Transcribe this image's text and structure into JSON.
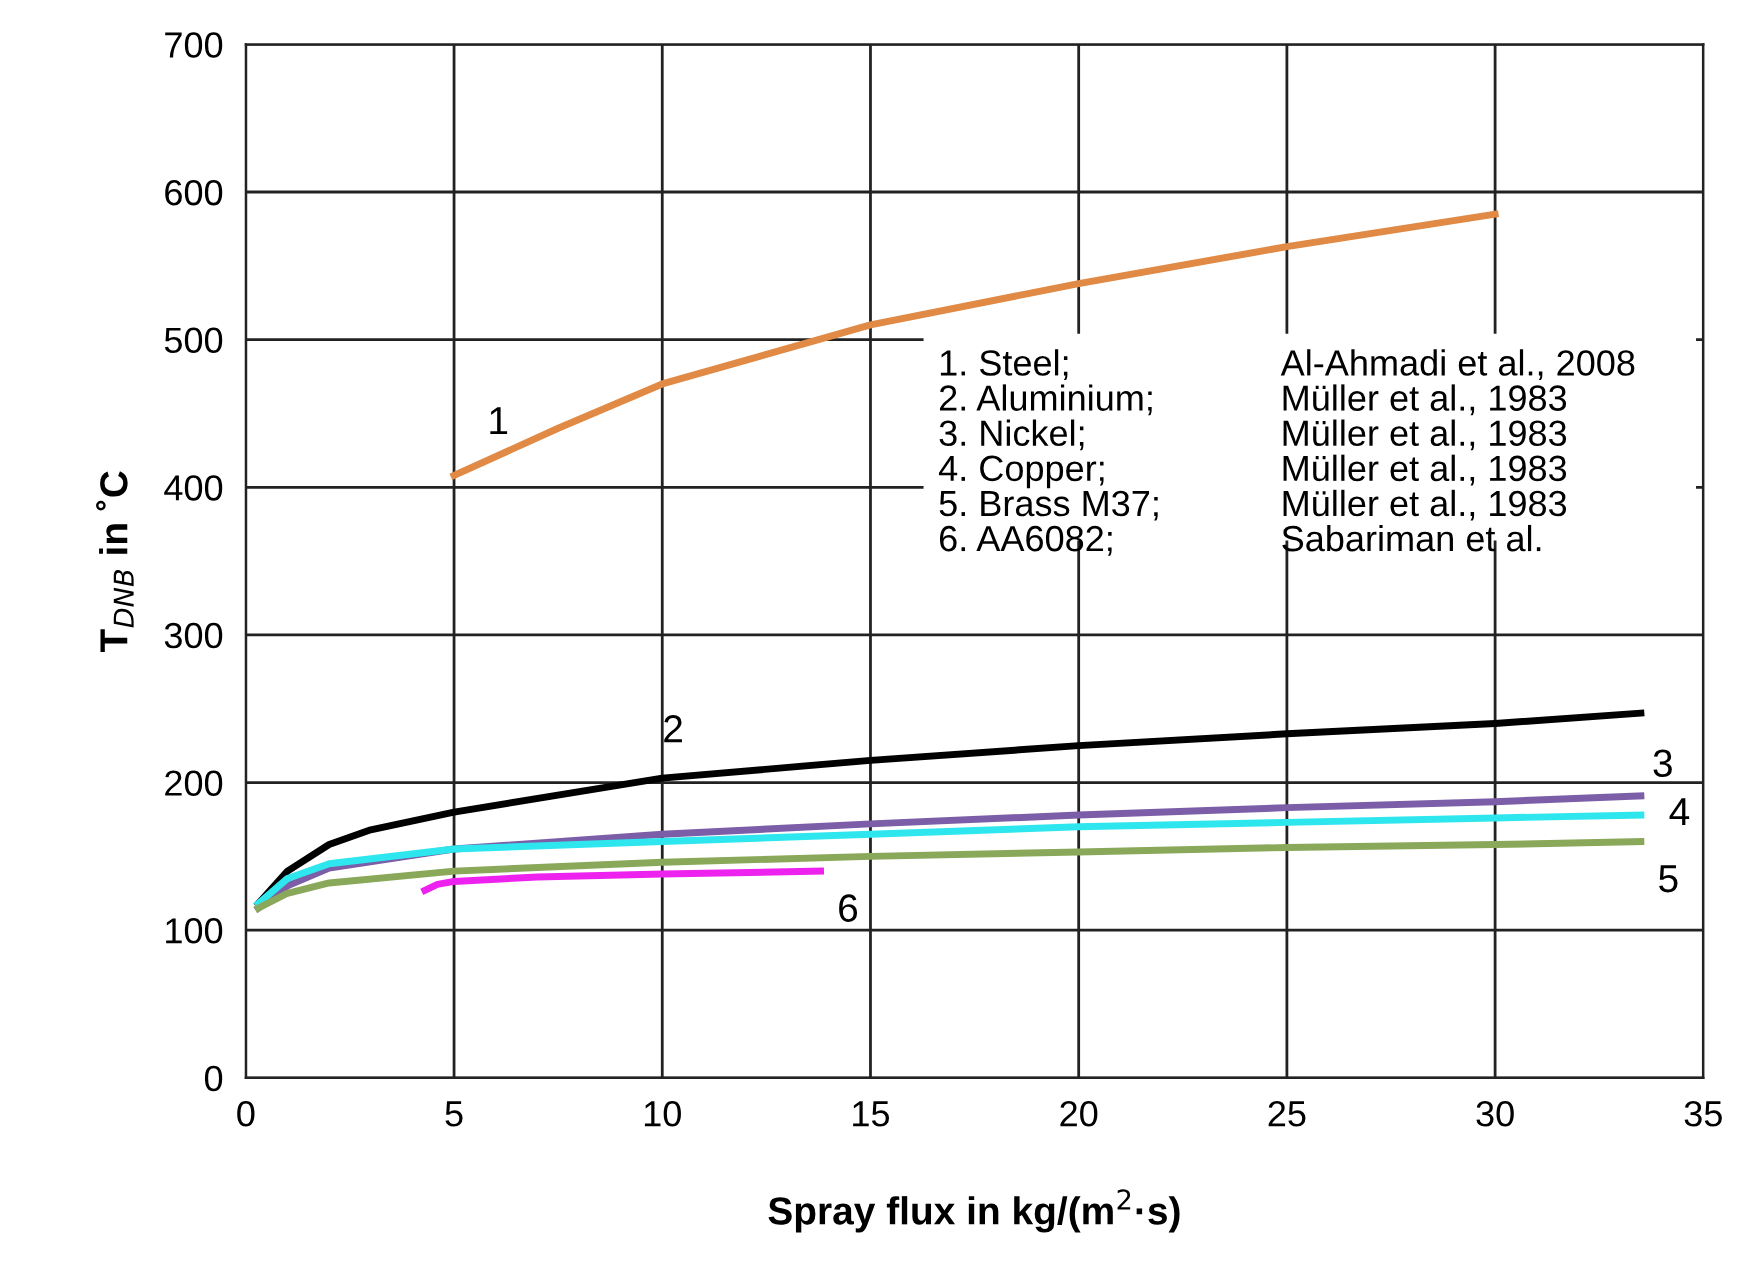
{
  "chart_data": {
    "type": "line",
    "xlabel": "Spray flux in kg/(m$^{2}$·s)",
    "ylabel": "T$_{DNB}$ in ˚C",
    "xlim": [
      0,
      35
    ],
    "xticks": [
      0,
      5,
      10,
      15,
      20,
      25,
      30,
      35
    ],
    "ylim": [
      0,
      700
    ],
    "yticks": [
      0,
      100,
      200,
      300,
      400,
      500,
      600,
      700
    ],
    "grid": true,
    "legend": false,
    "marker": "none",
    "line_style": "solid",
    "series": [
      {
        "name": "1",
        "color": "#e08a45",
        "x": [
          5,
          7.5,
          10,
          15,
          20,
          25,
          30
        ],
        "values": [
          408,
          440,
          470,
          510,
          538,
          563,
          585
        ]
      },
      {
        "name": "2",
        "color": "#000000",
        "x": [
          0.3,
          1,
          2,
          3,
          5,
          10,
          15,
          20,
          25,
          30,
          33.5
        ],
        "values": [
          118,
          140,
          158,
          168,
          180,
          203,
          215,
          225,
          233,
          240,
          247
        ]
      },
      {
        "name": "3",
        "color": "#7b5ea7",
        "x": [
          0.3,
          1,
          2,
          5,
          10,
          15,
          20,
          25,
          30,
          33.5
        ],
        "values": [
          115,
          130,
          142,
          155,
          165,
          172,
          178,
          183,
          187,
          191
        ]
      },
      {
        "name": "4",
        "color": "#2ee6ee",
        "x": [
          0.3,
          1,
          2,
          5,
          10,
          15,
          20,
          25,
          30,
          33.5
        ],
        "values": [
          118,
          135,
          145,
          155,
          160,
          165,
          170,
          173,
          176,
          178
        ]
      },
      {
        "name": "5",
        "color": "#8aa85a",
        "x": [
          0.3,
          1,
          2,
          5,
          10,
          15,
          20,
          25,
          30,
          33.5
        ],
        "values": [
          115,
          125,
          132,
          140,
          146,
          150,
          153,
          156,
          158,
          160
        ]
      },
      {
        "name": "6",
        "color": "#ee22ee",
        "x": [
          4.3,
          4.6,
          5,
          7,
          10,
          13.8
        ],
        "values": [
          127,
          131,
          133,
          136,
          138,
          140
        ]
      }
    ],
    "annotations": [
      "1. Steel;",
      "Al-Ahmadi et al., 2008",
      "2. Aluminium;",
      "Müller et al., 1983",
      "3. Nickel;",
      "Müller et al., 1983",
      "4. Copper;",
      "Müller et al., 1983",
      "5. Brass M37;",
      "Müller et al., 1983",
      "6. AA6082;",
      "Sabariman et al."
    ]
  }
}
